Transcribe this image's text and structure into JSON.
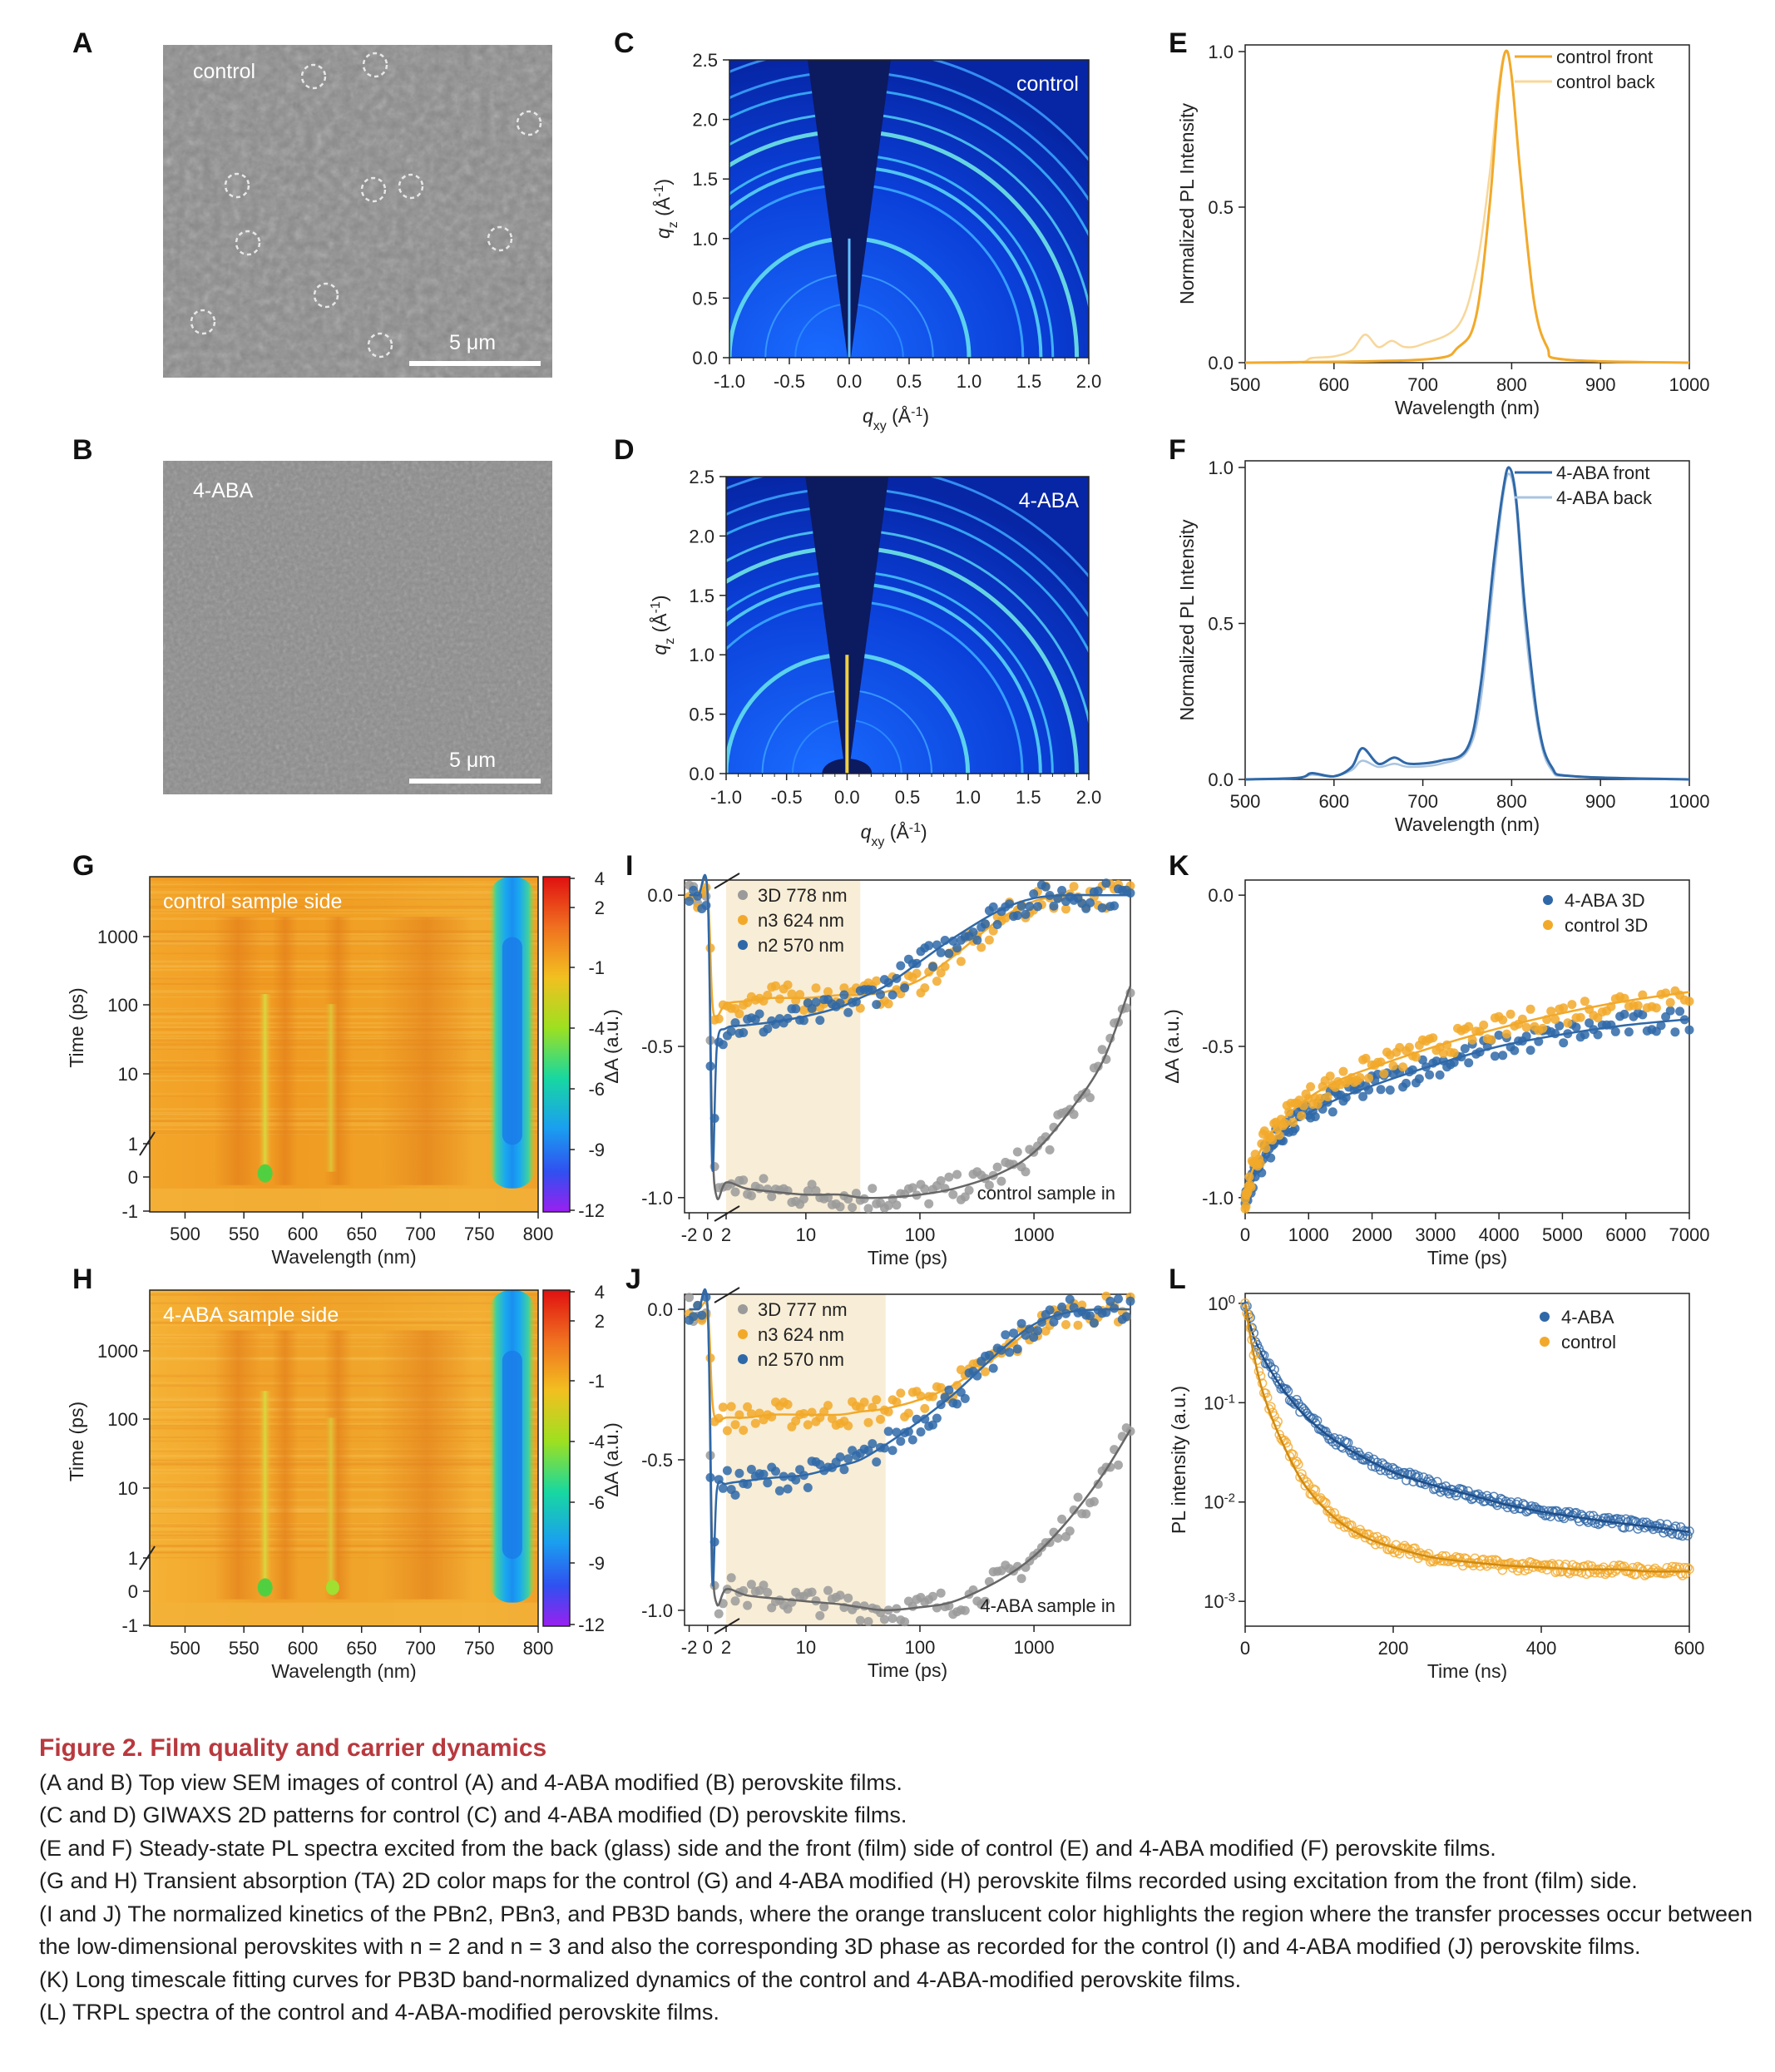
{
  "panels": {
    "A": {
      "letter": "A",
      "label": "control",
      "scalebar": "5 μm"
    },
    "B": {
      "letter": "B",
      "label": "4-ABA",
      "scalebar": "5 μm"
    },
    "C": {
      "letter": "C",
      "label": "control"
    },
    "D": {
      "letter": "D",
      "label": "4-ABA"
    },
    "E": {
      "letter": "E",
      "legend": [
        "control front",
        "control back"
      ]
    },
    "F": {
      "letter": "F",
      "legend": [
        "4-ABA front",
        "4-ABA back"
      ]
    },
    "G": {
      "letter": "G",
      "label": "control sample side"
    },
    "H": {
      "letter": "H",
      "label": "4-ABA sample side"
    },
    "I": {
      "letter": "I",
      "legend": [
        "3D 778 nm",
        "n3 624 nm",
        "n2 570 nm"
      ],
      "note": "control sample in"
    },
    "J": {
      "letter": "J",
      "legend": [
        "3D 777 nm",
        "n3 624 nm",
        "n2 570 nm"
      ],
      "note": "4-ABA sample in"
    },
    "K": {
      "letter": "K",
      "legend": [
        "4-ABA  3D",
        "control  3D"
      ]
    },
    "L": {
      "letter": "L",
      "legend": [
        "4-ABA",
        "control"
      ]
    }
  },
  "axes": {
    "giwaxs": {
      "xlabel": "q",
      "xsub": "xy",
      "xunit": " (Å",
      "xsup": "-1",
      "ylabel": "q",
      "ysub": "z",
      "xticks": [
        "-1.0",
        "-0.5",
        "0.0",
        "0.5",
        "1.0",
        "1.5",
        "2.0"
      ],
      "yticks": [
        "0.0",
        "0.5",
        "1.0",
        "1.5",
        "2.0",
        "2.5"
      ]
    },
    "pl": {
      "xlabel": "Wavelength (nm)",
      "ylabel": "Normalized PL Intensity",
      "xticks": [
        "500",
        "600",
        "700",
        "800",
        "900",
        "1000"
      ],
      "yticks": [
        "0.0",
        "0.5",
        "1.0"
      ]
    },
    "ta": {
      "xlabel": "Wavelength (nm)",
      "ylabel": "Time (ps)",
      "xticks": [
        "500",
        "550",
        "600",
        "650",
        "700",
        "750",
        "800"
      ],
      "yticks": [
        "-1",
        "0",
        "1",
        "10",
        "100",
        "1000"
      ],
      "cbticks": [
        "4",
        "2",
        "-1",
        "-4",
        "-6",
        "-9",
        "-12"
      ]
    },
    "kin": {
      "xlabel": "Time (ps)",
      "ylabel": "ΔA (a.u.)",
      "xticks": [
        "-2",
        "0",
        "2",
        "10",
        "100",
        "1000"
      ],
      "yticks": [
        "0.0",
        "-0.5",
        "-1.0"
      ]
    },
    "long": {
      "xlabel": "Time (ps)",
      "ylabel": "ΔA (a.u.)",
      "xticks": [
        "0",
        "1000",
        "2000",
        "3000",
        "4000",
        "5000",
        "6000",
        "7000"
      ],
      "yticks": [
        "0.0",
        "-0.5",
        "-1.0"
      ]
    },
    "trpl": {
      "xlabel": "Time (ns)",
      "ylabel": "PL intensity (a.u.)",
      "xticks": [
        "0",
        "200",
        "400",
        "600"
      ],
      "ybase": "10",
      "yexp": [
        "0",
        "-1",
        "-2",
        "-3"
      ]
    }
  },
  "colors": {
    "orange": "#f2a92a",
    "orange_light": "#f7d79a",
    "blue": "#2f68a8",
    "blue_light": "#a9c4e0",
    "gray": "#9a9a9a",
    "highlight": "#f8edd6"
  },
  "chart_data": [
    {
      "panel": "E",
      "type": "line",
      "xlim": [
        500,
        1000
      ],
      "ylim": [
        0,
        1.0
      ],
      "series": [
        {
          "name": "control front",
          "x": [
            500,
            700,
            740,
            760,
            775,
            785,
            793,
            800,
            810,
            825,
            840,
            860,
            1000
          ],
          "y": [
            0,
            0.01,
            0.05,
            0.15,
            0.5,
            0.85,
            1.0,
            0.92,
            0.6,
            0.2,
            0.05,
            0.01,
            0
          ]
        },
        {
          "name": "control back",
          "x": [
            500,
            560,
            575,
            600,
            620,
            635,
            650,
            665,
            680,
            700,
            740,
            760,
            775,
            785,
            793,
            800,
            810,
            825,
            840,
            860,
            1000
          ],
          "y": [
            0,
            0,
            0.015,
            0.02,
            0.04,
            0.09,
            0.05,
            0.07,
            0.05,
            0.06,
            0.12,
            0.3,
            0.6,
            0.88,
            1.0,
            0.92,
            0.6,
            0.2,
            0.05,
            0.01,
            0
          ]
        }
      ]
    },
    {
      "panel": "F",
      "type": "line",
      "xlim": [
        500,
        1000
      ],
      "ylim": [
        0,
        1.0
      ],
      "series": [
        {
          "name": "4-ABA front",
          "x": [
            500,
            560,
            575,
            600,
            620,
            632,
            650,
            668,
            685,
            720,
            750,
            765,
            780,
            790,
            797,
            805,
            815,
            830,
            845,
            870,
            1000
          ],
          "y": [
            0,
            0.005,
            0.02,
            0.01,
            0.04,
            0.1,
            0.05,
            0.07,
            0.05,
            0.06,
            0.1,
            0.3,
            0.7,
            0.92,
            1.0,
            0.9,
            0.55,
            0.18,
            0.04,
            0.01,
            0
          ]
        },
        {
          "name": "4-ABA back",
          "x": [
            500,
            560,
            575,
            600,
            620,
            632,
            650,
            668,
            685,
            720,
            750,
            765,
            780,
            790,
            797,
            805,
            815,
            830,
            845,
            870,
            1000
          ],
          "y": [
            0,
            0.005,
            0.015,
            0.01,
            0.03,
            0.06,
            0.04,
            0.05,
            0.04,
            0.05,
            0.09,
            0.25,
            0.65,
            0.9,
            0.98,
            0.88,
            0.5,
            0.16,
            0.03,
            0.01,
            0
          ]
        }
      ]
    },
    {
      "panel": "I",
      "type": "scatter",
      "xlim": [
        -2,
        7000
      ],
      "ylim": [
        -1.05,
        0.05
      ],
      "series": [
        {
          "name": "3D 778 nm",
          "t": [
            -2,
            -1,
            0,
            0.5,
            1,
            2,
            3,
            5,
            10,
            20,
            30,
            50,
            100,
            200,
            500,
            1000,
            2000,
            4000,
            7000
          ],
          "y": [
            0,
            0,
            0,
            -0.8,
            -1.0,
            -0.95,
            -0.97,
            -0.98,
            -0.99,
            -0.99,
            -1.0,
            -1.0,
            -0.99,
            -0.97,
            -0.92,
            -0.85,
            -0.72,
            -0.55,
            -0.3
          ]
        },
        {
          "name": "n3 624 nm",
          "t": [
            -2,
            -1,
            0,
            0.5,
            1,
            2,
            3,
            5,
            10,
            20,
            30,
            50,
            100,
            200,
            500,
            1000,
            2000,
            4000,
            7000
          ],
          "y": [
            0,
            0,
            0,
            -0.35,
            -0.4,
            -0.36,
            -0.35,
            -0.34,
            -0.34,
            -0.33,
            -0.33,
            -0.32,
            -0.28,
            -0.2,
            -0.08,
            -0.02,
            0,
            0,
            0
          ]
        },
        {
          "name": "n2 570 nm",
          "t": [
            -2,
            -1,
            0,
            0.5,
            1,
            2,
            3,
            5,
            10,
            20,
            30,
            50,
            100,
            200,
            500,
            1000,
            2000,
            4000,
            7000
          ],
          "y": [
            0,
            0,
            0,
            -0.9,
            -0.5,
            -0.44,
            -0.43,
            -0.42,
            -0.4,
            -0.37,
            -0.34,
            -0.3,
            -0.22,
            -0.14,
            -0.05,
            -0.01,
            0,
            0,
            0
          ]
        }
      ]
    },
    {
      "panel": "J",
      "type": "scatter",
      "xlim": [
        -2,
        7000
      ],
      "ylim": [
        -1.05,
        0.05
      ],
      "series": [
        {
          "name": "3D 777 nm",
          "t": [
            -2,
            -1,
            0,
            0.5,
            1,
            2,
            3,
            5,
            10,
            20,
            30,
            50,
            100,
            200,
            500,
            1000,
            2000,
            4000,
            7000
          ],
          "y": [
            0,
            0,
            0,
            -0.8,
            -0.98,
            -0.93,
            -0.95,
            -0.96,
            -0.97,
            -0.98,
            -0.99,
            -1.0,
            -0.99,
            -0.97,
            -0.9,
            -0.82,
            -0.7,
            -0.55,
            -0.4
          ]
        },
        {
          "name": "n3 624 nm",
          "t": [
            -2,
            -1,
            0,
            0.5,
            1,
            2,
            3,
            5,
            10,
            20,
            30,
            50,
            100,
            200,
            500,
            1000,
            2000,
            4000,
            7000
          ],
          "y": [
            0,
            0,
            0,
            -0.3,
            -0.37,
            -0.36,
            -0.36,
            -0.35,
            -0.35,
            -0.35,
            -0.34,
            -0.33,
            -0.3,
            -0.25,
            -0.15,
            -0.06,
            -0.01,
            0,
            0
          ]
        },
        {
          "name": "n2 570 nm",
          "t": [
            -2,
            -1,
            0,
            0.5,
            1,
            2,
            3,
            5,
            10,
            20,
            30,
            50,
            100,
            200,
            500,
            1000,
            2000,
            4000,
            7000
          ],
          "y": [
            0,
            0,
            0,
            -0.9,
            -0.6,
            -0.58,
            -0.57,
            -0.56,
            -0.55,
            -0.52,
            -0.5,
            -0.45,
            -0.37,
            -0.28,
            -0.14,
            -0.05,
            -0.01,
            0,
            0
          ]
        }
      ]
    },
    {
      "panel": "K",
      "type": "scatter",
      "xlim": [
        0,
        7000
      ],
      "ylim": [
        -1.05,
        0.05
      ],
      "series": [
        {
          "name": "4-ABA  3D",
          "x": [
            0,
            100,
            300,
            600,
            1000,
            1500,
            2000,
            3000,
            4000,
            5000,
            6000,
            7000
          ],
          "y": [
            -1.0,
            -0.95,
            -0.86,
            -0.78,
            -0.72,
            -0.67,
            -0.63,
            -0.56,
            -0.5,
            -0.46,
            -0.43,
            -0.41
          ]
        },
        {
          "name": "control  3D",
          "x": [
            0,
            100,
            300,
            600,
            1000,
            1500,
            2000,
            3000,
            4000,
            5000,
            6000,
            7000
          ],
          "y": [
            -1.0,
            -0.92,
            -0.82,
            -0.74,
            -0.67,
            -0.61,
            -0.57,
            -0.5,
            -0.44,
            -0.39,
            -0.35,
            -0.32
          ]
        }
      ]
    },
    {
      "panel": "L",
      "type": "scatter",
      "xlim": [
        0,
        600
      ],
      "yscale": "log",
      "ylim": [
        0.001,
        1
      ],
      "series": [
        {
          "name": "4-ABA",
          "x": [
            0,
            10,
            25,
            50,
            80,
            120,
            160,
            200,
            250,
            300,
            350,
            400,
            450,
            500,
            550,
            600
          ],
          "y": [
            1.0,
            0.5,
            0.28,
            0.14,
            0.075,
            0.042,
            0.028,
            0.02,
            0.015,
            0.012,
            0.0095,
            0.008,
            0.007,
            0.0062,
            0.0056,
            0.005
          ]
        },
        {
          "name": "control",
          "x": [
            0,
            10,
            25,
            50,
            80,
            120,
            160,
            200,
            250,
            300,
            350,
            400,
            450,
            500,
            550,
            600
          ],
          "y": [
            1.0,
            0.35,
            0.12,
            0.04,
            0.015,
            0.007,
            0.0045,
            0.0035,
            0.0028,
            0.0025,
            0.0023,
            0.0022,
            0.0021,
            0.0021,
            0.002,
            0.002
          ]
        }
      ]
    }
  ],
  "caption": {
    "title": "Figure 2.  Film quality and carrier dynamics",
    "lines": [
      "(A and B) Top view SEM images of control (A) and 4-ABA modified (B) perovskite films.",
      "(C and D) GIWAXS 2D patterns for control (C) and 4-ABA modified (D) perovskite films.",
      "(E and F) Steady-state PL spectra excited from the back (glass) side and the front (film) side of control (E) and 4-ABA modified (F) perovskite films.",
      "(G and H) Transient absorption (TA) 2D color maps for the control (G) and 4-ABA modified (H) perovskite films recorded using excitation from the front (film) side.",
      "(I and J) The normalized kinetics of the PBn2, PBn3, and PB3D bands, where the orange translucent color highlights the region where the transfer processes occur between the low-dimensional perovskites with n = 2 and n = 3 and also the corresponding 3D phase as recorded for the control (I) and 4-ABA modified (J) perovskite films.",
      "(K) Long timescale fitting curves for PB3D band-normalized dynamics of the control and 4-ABA-modified perovskite films.",
      "(L) TRPL spectra of the control and 4-ABA-modified perovskite films."
    ]
  }
}
